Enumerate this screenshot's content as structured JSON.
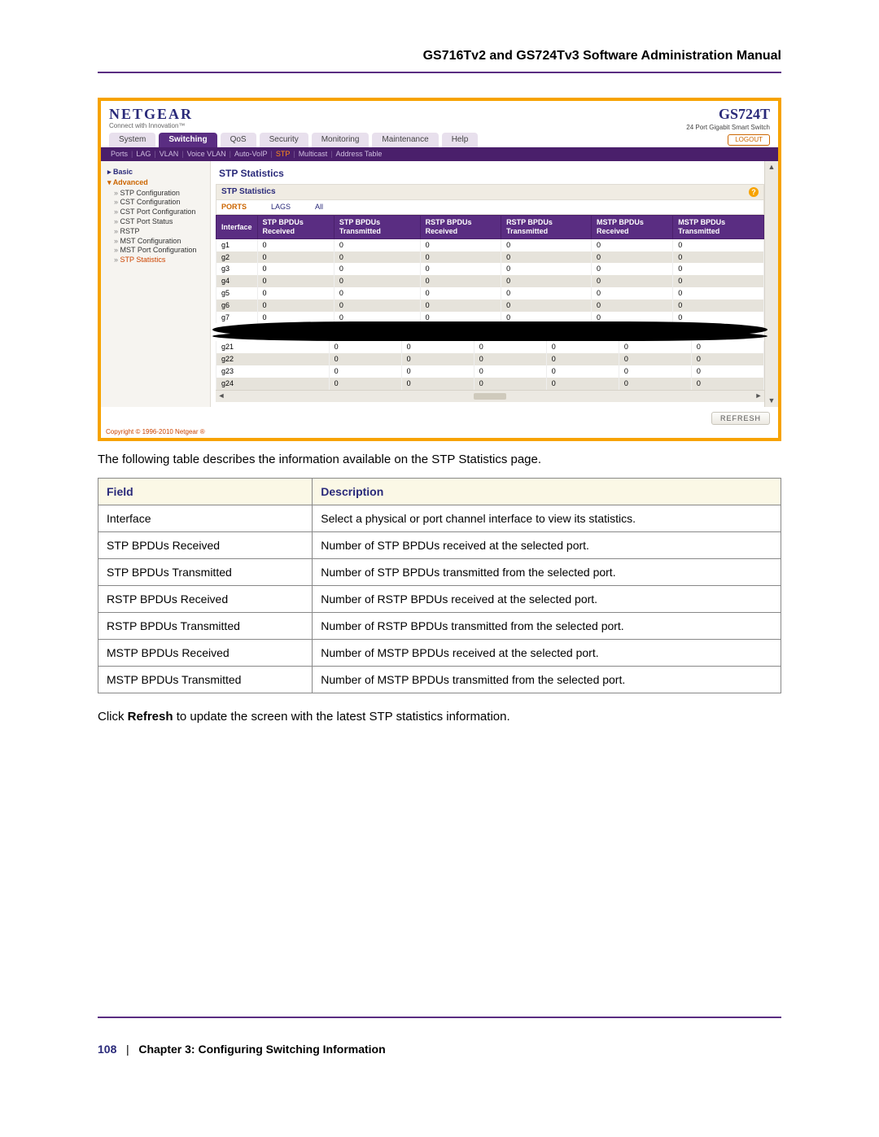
{
  "document": {
    "title": "GS716Tv2 and GS724Tv3 Software Administration Manual",
    "page_number": "108",
    "chapter": "Chapter 3:  Configuring Switching Information"
  },
  "screenshot": {
    "frame_color": "#f7a300",
    "brand": {
      "name": "NETGEAR",
      "tagline": "Connect with Innovation™",
      "color": "#2a2a7a"
    },
    "model": {
      "code": "GS724T",
      "description": "24 Port Gigabit Smart Switch"
    },
    "tabs": {
      "items": [
        "System",
        "Switching",
        "QoS",
        "Security",
        "Monitoring",
        "Maintenance",
        "Help"
      ],
      "active_index": 1,
      "logout_label": "LOGOUT",
      "active_bg": "#5a2d82",
      "inactive_bg": "#e8e0ed"
    },
    "subnav": {
      "items": [
        "Ports",
        "LAG",
        "VLAN",
        "Voice VLAN",
        "Auto-VoIP",
        "STP",
        "Multicast",
        "Address Table"
      ],
      "active_index": 5,
      "bg": "#4a1f6b",
      "active_color": "#ff8c1a"
    },
    "sidebar": {
      "groups": [
        {
          "label": "Basic",
          "style": "basic"
        },
        {
          "label": "Advanced",
          "style": "adv"
        }
      ],
      "items": [
        "STP Configuration",
        "CST Configuration",
        "CST Port Configuration",
        "CST Port Status",
        "RSTP",
        "MST Configuration",
        "MST Port Configuration",
        "STP Statistics"
      ],
      "active_index": 7
    },
    "panel": {
      "title": "STP Statistics",
      "subtitle": "STP Statistics",
      "filters": {
        "ports": "PORTS",
        "lags": "LAGS",
        "all": "All"
      },
      "table": {
        "header_bg": "#5a2d82",
        "columns": [
          "Interface",
          "STP BPDUs Received",
          "STP BPDUs Transmitted",
          "RSTP BPDUs Received",
          "RSTP BPDUs Transmitted",
          "MSTP BPDUs Received",
          "MSTP BPDUs Transmitted"
        ],
        "rows_top": [
          [
            "g1",
            "0",
            "0",
            "0",
            "0",
            "0",
            "0"
          ],
          [
            "g2",
            "0",
            "0",
            "0",
            "0",
            "0",
            "0"
          ],
          [
            "g3",
            "0",
            "0",
            "0",
            "0",
            "0",
            "0"
          ],
          [
            "g4",
            "0",
            "0",
            "0",
            "0",
            "0",
            "0"
          ],
          [
            "g5",
            "0",
            "0",
            "0",
            "0",
            "0",
            "0"
          ],
          [
            "g6",
            "0",
            "0",
            "0",
            "0",
            "0",
            "0"
          ],
          [
            "g7",
            "0",
            "0",
            "0",
            "0",
            "0",
            "0"
          ]
        ],
        "rows_bottom": [
          [
            "g21",
            "0",
            "0",
            "0",
            "0",
            "0",
            "0"
          ],
          [
            "g22",
            "0",
            "0",
            "0",
            "0",
            "0",
            "0"
          ],
          [
            "g23",
            "0",
            "0",
            "0",
            "0",
            "0",
            "0"
          ],
          [
            "g24",
            "0",
            "0",
            "0",
            "0",
            "0",
            "0"
          ]
        ]
      },
      "refresh_label": "REFRESH"
    },
    "copyright": "Copyright © 1996-2010 Netgear ®"
  },
  "body_text": {
    "intro": "The following table describes the information available on the STP Statistics page.",
    "refresh_hint_pre": "Click ",
    "refresh_hint_bold": "Refresh",
    "refresh_hint_post": " to update the screen with the latest STP statistics information."
  },
  "field_table": {
    "headers": {
      "field": "Field",
      "description": "Description"
    },
    "header_bg": "#fbf8e6",
    "header_color": "#2a2a7a",
    "border_color": "#888888",
    "rows": [
      [
        "Interface",
        "Select a physical or port channel interface to view its statistics."
      ],
      [
        "STP BPDUs Received",
        "Number of STP BPDUs received at the selected port."
      ],
      [
        "STP BPDUs Transmitted",
        "Number of STP BPDUs transmitted from the selected port."
      ],
      [
        "RSTP BPDUs Received",
        "Number of RSTP BPDUs received at the selected port."
      ],
      [
        "RSTP BPDUs Transmitted",
        "Number of RSTP BPDUs transmitted from the selected port."
      ],
      [
        "MSTP BPDUs Received",
        "Number of MSTP BPDUs received at the selected port."
      ],
      [
        "MSTP BPDUs Transmitted",
        "Number of MSTP BPDUs transmitted from the selected port."
      ]
    ]
  }
}
